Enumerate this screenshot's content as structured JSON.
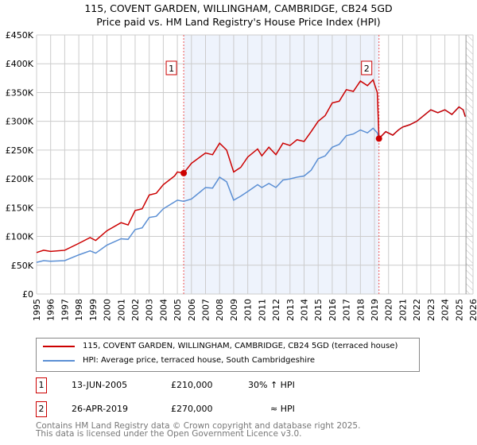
{
  "chart_data": {
    "type": "line",
    "title": "115, COVENT GARDEN, WILLINGHAM, CAMBRIDGE, CB24 5GD",
    "subtitle": "Price paid vs. HM Land Registry's House Price Index (HPI)",
    "xlim": [
      1995,
      2026
    ],
    "ylim": [
      0,
      450000
    ],
    "x_ticks": [
      "1995",
      "1996",
      "1997",
      "1998",
      "1999",
      "2000",
      "2001",
      "2002",
      "2003",
      "2004",
      "2005",
      "2006",
      "2007",
      "2008",
      "2009",
      "2010",
      "2011",
      "2012",
      "2013",
      "2014",
      "2015",
      "2016",
      "2017",
      "2018",
      "2019",
      "2020",
      "2021",
      "2022",
      "2023",
      "2024",
      "2025",
      "2026"
    ],
    "y_ticks": [
      {
        "v": 0,
        "l": "£0"
      },
      {
        "v": 50000,
        "l": "£50K"
      },
      {
        "v": 100000,
        "l": "£100K"
      },
      {
        "v": 150000,
        "l": "£150K"
      },
      {
        "v": 200000,
        "l": "£200K"
      },
      {
        "v": 250000,
        "l": "£250K"
      },
      {
        "v": 300000,
        "l": "£300K"
      },
      {
        "v": 350000,
        "l": "£350K"
      },
      {
        "v": 400000,
        "l": "£400K"
      },
      {
        "v": 450000,
        "l": "£450K"
      }
    ],
    "grid": true,
    "shaded_range": [
      2005.45,
      2019.32
    ],
    "forecast_hatch_from": 2025.5,
    "series": [
      {
        "name": "115, COVENT GARDEN, WILLINGHAM, CAMBRIDGE, CB24 5GD (terraced house)",
        "color": "#cc0000",
        "x": [
          1995,
          1995.5,
          1996,
          1997,
          1998,
          1998.8,
          1999.2,
          2000,
          2001,
          2001.5,
          2002,
          2002.5,
          2003,
          2003.5,
          2004,
          2004.8,
          2005,
          2005.45,
          2006,
          2007,
          2007.5,
          2008,
          2008.5,
          2009,
          2009.5,
          2010,
          2010.7,
          2011,
          2011.5,
          2012,
          2012.5,
          2013,
          2013.5,
          2014,
          2014.5,
          2015,
          2015.5,
          2016,
          2016.5,
          2017,
          2017.5,
          2018,
          2018.5,
          2018.9,
          2019.2,
          2019.32,
          2019.8,
          2020.3,
          2020.7,
          2021,
          2021.5,
          2022,
          2022.5,
          2023,
          2023.5,
          2024,
          2024.5,
          2025,
          2025.3,
          2025.45
        ],
        "y": [
          72000,
          76000,
          74000,
          76000,
          88000,
          98000,
          93000,
          110000,
          124000,
          120000,
          145000,
          148000,
          172000,
          175000,
          190000,
          205000,
          212000,
          210000,
          227000,
          245000,
          242000,
          262000,
          250000,
          212000,
          220000,
          238000,
          252000,
          240000,
          255000,
          242000,
          262000,
          258000,
          268000,
          265000,
          282000,
          300000,
          310000,
          332000,
          335000,
          355000,
          352000,
          370000,
          362000,
          372000,
          350000,
          270000,
          282000,
          276000,
          285000,
          290000,
          294000,
          300000,
          310000,
          320000,
          315000,
          320000,
          312000,
          325000,
          320000,
          308000
        ]
      },
      {
        "name": "HPI: Average price, terraced house, South Cambridgeshire",
        "color": "#5b8fd4",
        "x": [
          1995,
          1995.5,
          1996,
          1997,
          1998,
          1998.8,
          1999.2,
          2000,
          2001,
          2001.5,
          2002,
          2002.5,
          2003,
          2003.5,
          2004,
          2004.8,
          2005,
          2005.45,
          2006,
          2007,
          2007.5,
          2008,
          2008.5,
          2009,
          2009.5,
          2010,
          2010.7,
          2011,
          2011.5,
          2012,
          2012.5,
          2013,
          2013.5,
          2014,
          2014.5,
          2015,
          2015.5,
          2016,
          2016.5,
          2017,
          2017.5,
          2018,
          2018.5,
          2018.9,
          2019.2,
          2019.32,
          2019.8,
          2020.3,
          2020.7,
          2021,
          2021.5,
          2022,
          2022.5,
          2023,
          2023.5,
          2024,
          2024.5,
          2025,
          2025.3,
          2025.45
        ],
        "y": [
          55000,
          58000,
          57000,
          58000,
          68000,
          75000,
          71000,
          85000,
          96000,
          95000,
          112000,
          115000,
          133000,
          135000,
          148000,
          160000,
          163000,
          161000,
          165000,
          185000,
          184000,
          203000,
          195000,
          163000,
          170000,
          178000,
          190000,
          185000,
          192000,
          185000,
          198000,
          200000,
          203000,
          205000,
          215000,
          235000,
          240000,
          255000,
          260000,
          275000,
          278000,
          285000,
          280000,
          288000,
          280000,
          270000,
          282000,
          276000,
          285000,
          290000,
          294000,
          300000,
          310000,
          320000,
          315000,
          320000,
          312000,
          325000,
          320000,
          308000
        ]
      }
    ],
    "markers": [
      {
        "label": "1",
        "x": 2005.45,
        "y": 210000
      },
      {
        "label": "2",
        "x": 2019.32,
        "y": 270000
      }
    ]
  },
  "transactions": [
    {
      "num": "1",
      "date": "13-JUN-2005",
      "price": "£210,000",
      "hpi": "30% ↑ HPI"
    },
    {
      "num": "2",
      "date": "26-APR-2019",
      "price": "£270,000",
      "hpi": "≈ HPI"
    }
  ],
  "footer": [
    "Contains HM Land Registry data © Crown copyright and database right 2025.",
    "This data is licensed under the Open Government Licence v3.0."
  ]
}
